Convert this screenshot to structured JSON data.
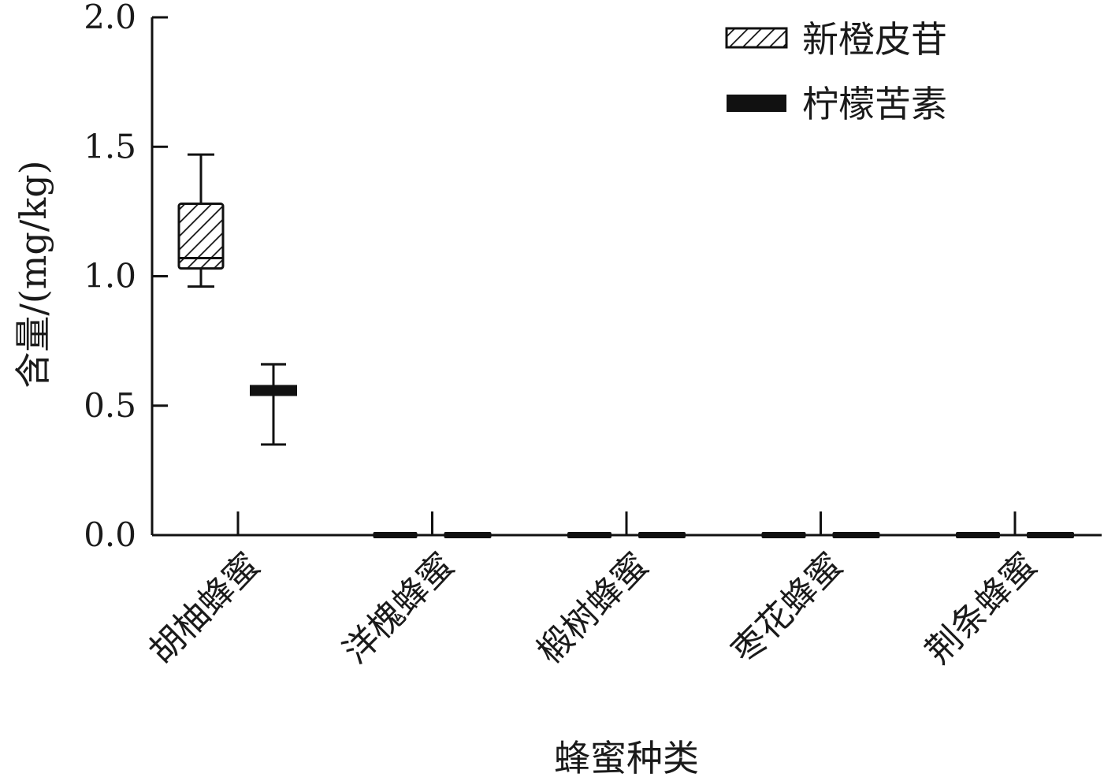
{
  "chart_data": {
    "type": "box",
    "categories": [
      "胡柚蜂蜜",
      "洋槐蜂蜜",
      "椴树蜂蜜",
      "枣花蜂蜜",
      "荆条蜂蜜"
    ],
    "series": [
      {
        "name": "新橙皮苷",
        "pattern": "hatched",
        "boxes": [
          {
            "min": 0.96,
            "q1": 1.03,
            "median": 1.07,
            "q3": 1.28,
            "max": 1.47
          },
          {
            "min": 0,
            "q1": 0,
            "median": 0,
            "q3": 0,
            "max": 0
          },
          {
            "min": 0,
            "q1": 0,
            "median": 0,
            "q3": 0,
            "max": 0
          },
          {
            "min": 0,
            "q1": 0,
            "median": 0,
            "q3": 0,
            "max": 0
          },
          {
            "min": 0,
            "q1": 0,
            "median": 0,
            "q3": 0,
            "max": 0
          }
        ]
      },
      {
        "name": "柠檬苦素",
        "pattern": "solid",
        "boxes": [
          {
            "min": 0.35,
            "q1": 0.55,
            "median": 0.57,
            "q3": 0.58,
            "max": 0.66
          },
          {
            "min": 0,
            "q1": 0,
            "median": 0,
            "q3": 0,
            "max": 0
          },
          {
            "min": 0,
            "q1": 0,
            "median": 0,
            "q3": 0,
            "max": 0
          },
          {
            "min": 0,
            "q1": 0,
            "median": 0,
            "q3": 0,
            "max": 0
          },
          {
            "min": 0,
            "q1": 0,
            "median": 0,
            "q3": 0,
            "max": 0
          }
        ]
      }
    ],
    "xlabel": "蜂蜜种类",
    "ylabel": "含量/(mg/kg)",
    "ylim": [
      0,
      2.0
    ],
    "yticks": [
      "0.0",
      "0.5",
      "1.0",
      "1.5",
      "2.0"
    ],
    "legend_position": "top-right",
    "grid": false,
    "colors": {
      "ink": "#111111"
    }
  }
}
